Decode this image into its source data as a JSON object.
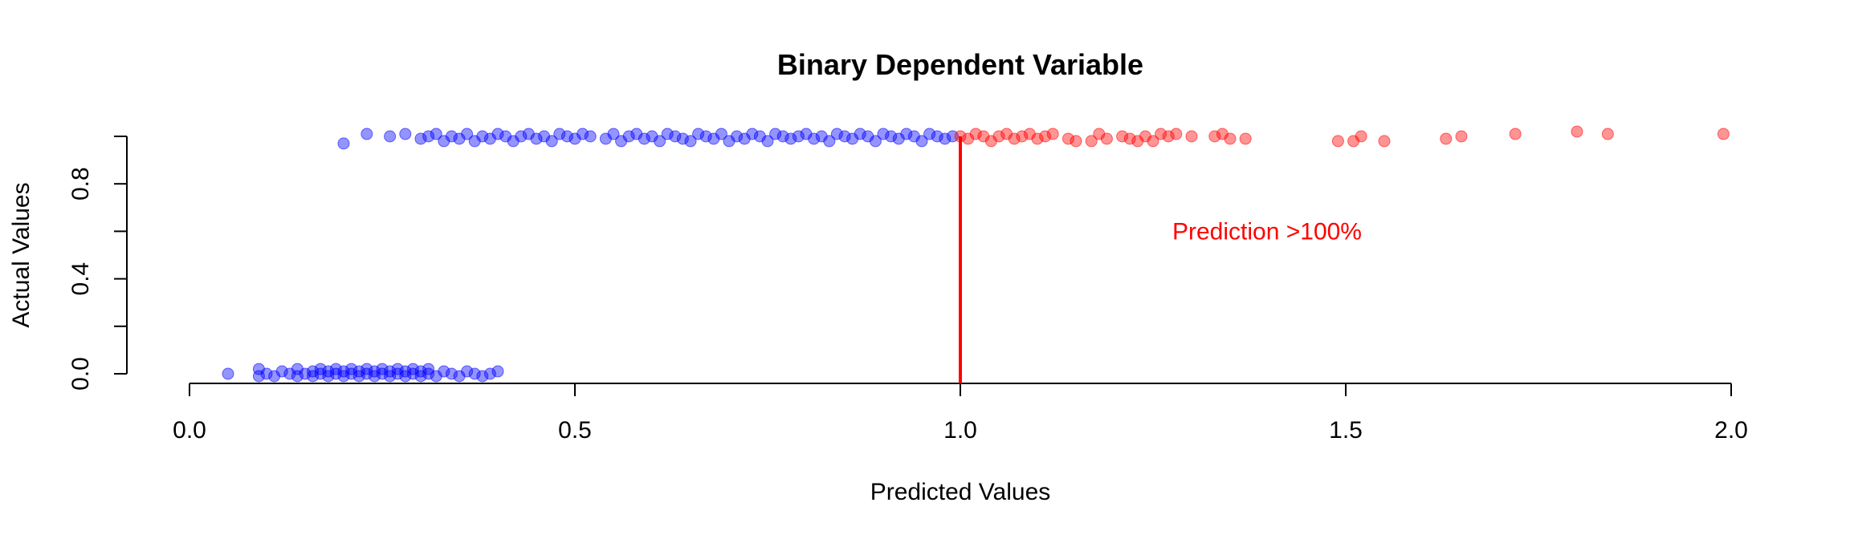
{
  "chart_data": {
    "type": "scatter",
    "title": "Binary Dependent Variable",
    "xlabel": "Predicted Values",
    "ylabel": "Actual Values",
    "xlim": [
      0.0,
      2.0
    ],
    "ylim": [
      0.0,
      1.0
    ],
    "x_ticks": [
      "0.0",
      "0.5",
      "1.0",
      "1.5",
      "2.0"
    ],
    "y_ticks": [
      "0.0",
      "0.4",
      "0.8"
    ],
    "y_tick_positions": [
      0.0,
      0.2,
      0.4,
      0.6,
      0.8,
      1.0
    ],
    "threshold_x": 1.0,
    "threshold_color": "#ff0000",
    "annotation": {
      "text": "Prediction >100%",
      "x": 1.5,
      "y": 0.6,
      "color": "#ff0000"
    },
    "grid": false,
    "series": [
      {
        "color": "#0000ff",
        "points": [
          [
            0.05,
            0.0
          ],
          [
            0.09,
            -0.01
          ],
          [
            0.09,
            0.02
          ],
          [
            0.1,
            0.0
          ],
          [
            0.11,
            -0.01
          ],
          [
            0.12,
            0.01
          ],
          [
            0.13,
            0.0
          ],
          [
            0.14,
            -0.01
          ],
          [
            0.14,
            0.02
          ],
          [
            0.15,
            0.0
          ],
          [
            0.16,
            0.01
          ],
          [
            0.16,
            -0.01
          ],
          [
            0.17,
            0.0
          ],
          [
            0.17,
            0.02
          ],
          [
            0.18,
            -0.01
          ],
          [
            0.18,
            0.01
          ],
          [
            0.19,
            0.0
          ],
          [
            0.19,
            0.02
          ],
          [
            0.2,
            -0.01
          ],
          [
            0.2,
            0.01
          ],
          [
            0.21,
            0.0
          ],
          [
            0.21,
            0.02
          ],
          [
            0.22,
            -0.01
          ],
          [
            0.22,
            0.01
          ],
          [
            0.23,
            0.0
          ],
          [
            0.23,
            0.02
          ],
          [
            0.24,
            -0.01
          ],
          [
            0.24,
            0.01
          ],
          [
            0.25,
            0.0
          ],
          [
            0.25,
            0.02
          ],
          [
            0.26,
            -0.01
          ],
          [
            0.26,
            0.01
          ],
          [
            0.27,
            0.0
          ],
          [
            0.27,
            0.02
          ],
          [
            0.28,
            -0.01
          ],
          [
            0.28,
            0.01
          ],
          [
            0.29,
            0.0
          ],
          [
            0.29,
            0.02
          ],
          [
            0.3,
            -0.01
          ],
          [
            0.3,
            0.01
          ],
          [
            0.31,
            0.0
          ],
          [
            0.31,
            0.02
          ],
          [
            0.32,
            -0.01
          ],
          [
            0.33,
            0.01
          ],
          [
            0.34,
            0.0
          ],
          [
            0.35,
            -0.01
          ],
          [
            0.36,
            0.01
          ],
          [
            0.37,
            0.0
          ],
          [
            0.38,
            -0.01
          ],
          [
            0.39,
            0.0
          ],
          [
            0.4,
            0.01
          ],
          [
            0.2,
            0.97
          ],
          [
            0.23,
            1.01
          ],
          [
            0.26,
            1.0
          ],
          [
            0.28,
            1.01
          ],
          [
            0.3,
            0.99
          ],
          [
            0.31,
            1.0
          ],
          [
            0.32,
            1.01
          ],
          [
            0.33,
            0.98
          ],
          [
            0.34,
            1.0
          ],
          [
            0.35,
            0.99
          ],
          [
            0.36,
            1.01
          ],
          [
            0.37,
            0.98
          ],
          [
            0.38,
            1.0
          ],
          [
            0.39,
            0.99
          ],
          [
            0.4,
            1.01
          ],
          [
            0.41,
            1.0
          ],
          [
            0.42,
            0.98
          ],
          [
            0.43,
            1.0
          ],
          [
            0.44,
            1.01
          ],
          [
            0.45,
            0.99
          ],
          [
            0.46,
            1.0
          ],
          [
            0.47,
            0.98
          ],
          [
            0.48,
            1.01
          ],
          [
            0.49,
            1.0
          ],
          [
            0.5,
            0.99
          ],
          [
            0.51,
            1.01
          ],
          [
            0.52,
            1.0
          ],
          [
            0.54,
            0.99
          ],
          [
            0.55,
            1.01
          ],
          [
            0.56,
            0.98
          ],
          [
            0.57,
            1.0
          ],
          [
            0.58,
            1.01
          ],
          [
            0.59,
            0.99
          ],
          [
            0.6,
            1.0
          ],
          [
            0.61,
            0.98
          ],
          [
            0.62,
            1.01
          ],
          [
            0.63,
            1.0
          ],
          [
            0.64,
            0.99
          ],
          [
            0.65,
            0.98
          ],
          [
            0.66,
            1.01
          ],
          [
            0.67,
            1.0
          ],
          [
            0.68,
            0.99
          ],
          [
            0.69,
            1.01
          ],
          [
            0.7,
            0.98
          ],
          [
            0.71,
            1.0
          ],
          [
            0.72,
            0.99
          ],
          [
            0.73,
            1.01
          ],
          [
            0.74,
            1.0
          ],
          [
            0.75,
            0.98
          ],
          [
            0.76,
            1.01
          ],
          [
            0.77,
            1.0
          ],
          [
            0.78,
            0.99
          ],
          [
            0.79,
            1.0
          ],
          [
            0.8,
            1.01
          ],
          [
            0.81,
            0.99
          ],
          [
            0.82,
            1.0
          ],
          [
            0.83,
            0.98
          ],
          [
            0.84,
            1.01
          ],
          [
            0.85,
            1.0
          ],
          [
            0.86,
            0.99
          ],
          [
            0.87,
            1.01
          ],
          [
            0.88,
            1.0
          ],
          [
            0.89,
            0.98
          ],
          [
            0.9,
            1.01
          ],
          [
            0.91,
            1.0
          ],
          [
            0.92,
            0.99
          ],
          [
            0.93,
            1.01
          ],
          [
            0.94,
            1.0
          ],
          [
            0.95,
            0.98
          ],
          [
            0.96,
            1.01
          ],
          [
            0.97,
            1.0
          ],
          [
            0.98,
            0.99
          ],
          [
            0.99,
            1.0
          ]
        ]
      },
      {
        "color": "#ff0000",
        "points": [
          [
            1.0,
            1.0
          ],
          [
            1.01,
            0.99
          ],
          [
            1.02,
            1.01
          ],
          [
            1.03,
            1.0
          ],
          [
            1.04,
            0.98
          ],
          [
            1.05,
            1.0
          ],
          [
            1.06,
            1.01
          ],
          [
            1.07,
            0.99
          ],
          [
            1.08,
            1.0
          ],
          [
            1.09,
            1.01
          ],
          [
            1.1,
            0.99
          ],
          [
            1.11,
            1.0
          ],
          [
            1.12,
            1.01
          ],
          [
            1.14,
            0.99
          ],
          [
            1.15,
            0.98
          ],
          [
            1.17,
            0.98
          ],
          [
            1.18,
            1.01
          ],
          [
            1.19,
            0.99
          ],
          [
            1.21,
            1.0
          ],
          [
            1.22,
            0.99
          ],
          [
            1.23,
            0.98
          ],
          [
            1.24,
            1.0
          ],
          [
            1.25,
            0.98
          ],
          [
            1.26,
            1.01
          ],
          [
            1.27,
            1.0
          ],
          [
            1.28,
            1.01
          ],
          [
            1.3,
            1.0
          ],
          [
            1.33,
            1.0
          ],
          [
            1.34,
            1.01
          ],
          [
            1.35,
            0.99
          ],
          [
            1.37,
            0.99
          ],
          [
            1.49,
            0.98
          ],
          [
            1.51,
            0.98
          ],
          [
            1.52,
            1.0
          ],
          [
            1.55,
            0.98
          ],
          [
            1.63,
            0.99
          ],
          [
            1.65,
            1.0
          ],
          [
            1.72,
            1.01
          ],
          [
            1.8,
            1.02
          ],
          [
            1.84,
            1.01
          ],
          [
            1.99,
            1.01
          ]
        ]
      }
    ]
  }
}
